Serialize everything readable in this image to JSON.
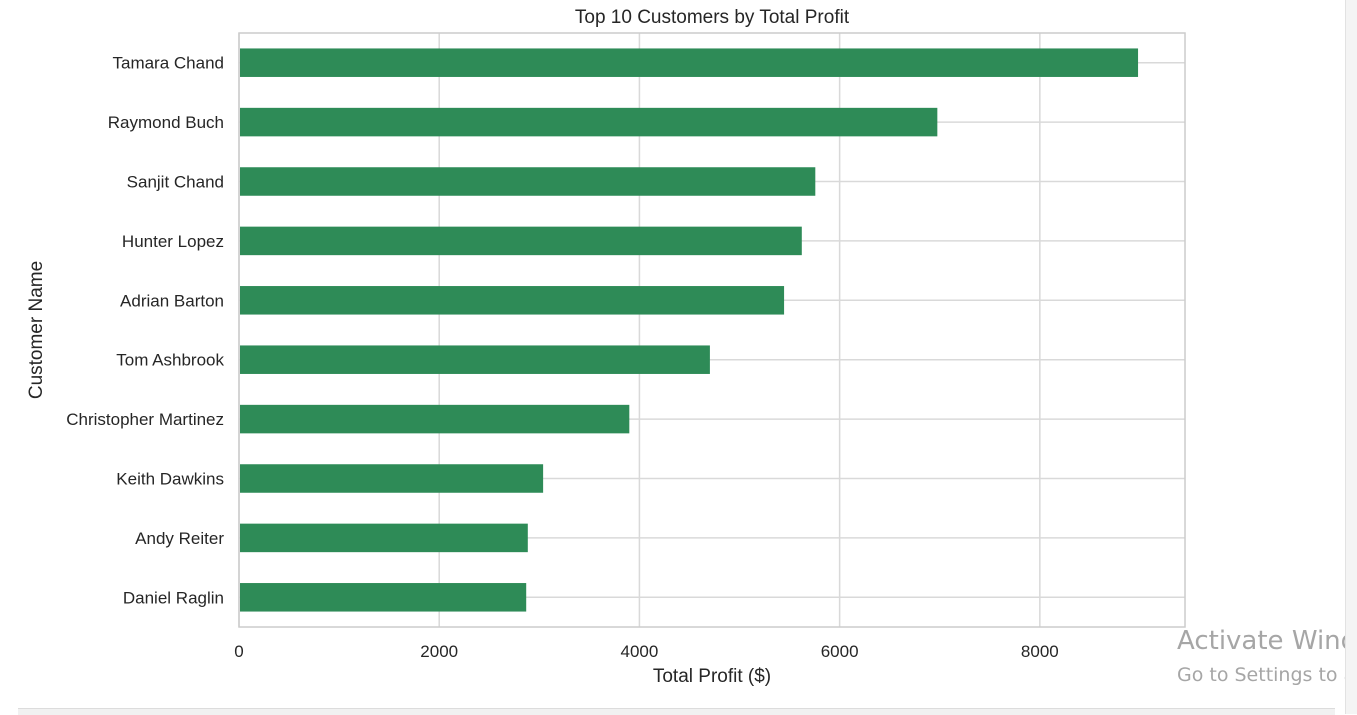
{
  "chart_data": {
    "type": "bar",
    "orientation": "horizontal",
    "title": "Top 10 Customers by Total Profit",
    "xlabel": "Total Profit ($)",
    "ylabel": "Customer Name",
    "categories": [
      "Tamara Chand",
      "Raymond Buch",
      "Sanjit Chand",
      "Hunter Lopez",
      "Adrian Barton",
      "Tom Ashbrook",
      "Christopher Martinez",
      "Keith Dawkins",
      "Andy Reiter",
      "Daniel Raglin"
    ],
    "values": [
      8981,
      6976,
      5757,
      5622,
      5445,
      4704,
      3899,
      3038,
      2885,
      2869
    ],
    "xlim": [
      0,
      9450
    ],
    "xticks": [
      0,
      2000,
      4000,
      6000,
      8000
    ],
    "grid": true,
    "legend": "none",
    "bar_color": "#2e8b57"
  },
  "watermark": {
    "title": "Activate Wind",
    "subtitle": "Go to Settings to a"
  }
}
